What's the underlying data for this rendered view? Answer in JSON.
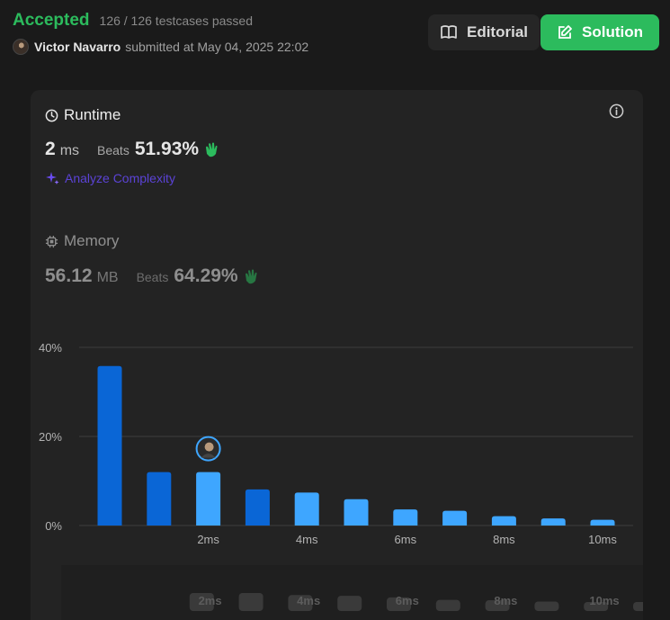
{
  "header": {
    "status": "Accepted",
    "testcases": "126 / 126 testcases passed",
    "username": "Victor Navarro",
    "submitted": "submitted at May 04, 2025 22:02",
    "editorial_label": "Editorial",
    "solution_label": "Solution"
  },
  "runtime": {
    "title": "Runtime",
    "value": "2",
    "unit": "ms",
    "beats_label": "Beats",
    "beats_value": "51.93%",
    "analyze_label": "Analyze Complexity"
  },
  "memory": {
    "title": "Memory",
    "value": "56.12",
    "unit": "MB",
    "beats_label": "Beats",
    "beats_value": "64.29%"
  },
  "colors": {
    "accepted": "#2cbb5d",
    "bar_dark": "#0a66d6",
    "bar_light": "#3ea6ff",
    "purple": "#5b43d6"
  },
  "chart_data": {
    "type": "bar",
    "ylabel": "",
    "xlabel": "",
    "ylim": [
      0,
      40
    ],
    "y_ticks": [
      "0%",
      "20%",
      "40%"
    ],
    "categories": [
      "0ms",
      "1ms",
      "2ms",
      "3ms",
      "4ms",
      "5ms",
      "6ms",
      "7ms",
      "8ms",
      "9ms",
      "10ms"
    ],
    "x_tick_labels": [
      "",
      "",
      "2ms",
      "",
      "4ms",
      "",
      "6ms",
      "",
      "8ms",
      "",
      "10ms"
    ],
    "values": [
      35.8,
      12.0,
      12.0,
      8.1,
      7.4,
      5.9,
      3.6,
      3.3,
      2.1,
      1.6,
      1.3
    ],
    "highlight_index": 2,
    "grid": true
  },
  "mini_chart": {
    "x_tick_labels": [
      "2ms",
      "4ms",
      "6ms",
      "8ms",
      "10ms"
    ]
  }
}
